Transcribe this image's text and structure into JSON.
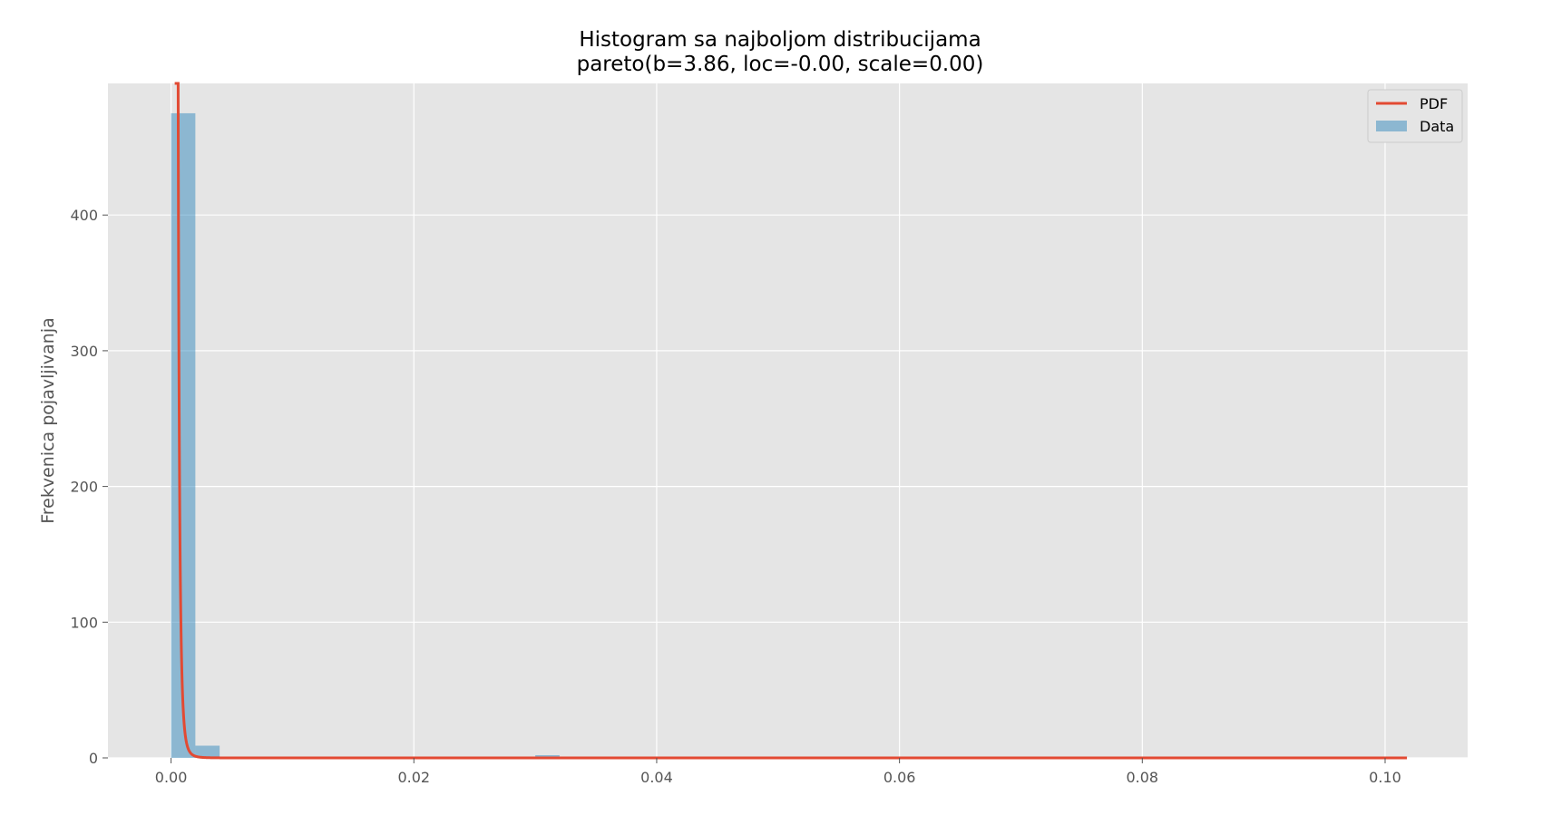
{
  "chart_data": {
    "type": "histogram",
    "title": "Histogram sa najboljom distribucijama",
    "subtitle": "pareto(b=3.86, loc=-0.00, scale=0.00)",
    "xlabel": "",
    "ylabel": "Frekvenica pojavljivanja",
    "xlim": [
      -0.0052,
      0.1068
    ],
    "ylim": [
      0,
      497
    ],
    "x_ticks": [
      0.0,
      0.02,
      0.04,
      0.06,
      0.08,
      0.1
    ],
    "x_tick_labels": [
      "0.00",
      "0.02",
      "0.04",
      "0.06",
      "0.08",
      "0.10"
    ],
    "y_ticks": [
      0,
      100,
      200,
      300,
      400
    ],
    "y_tick_labels": [
      "0",
      "100",
      "200",
      "300",
      "400"
    ],
    "grid": true,
    "legend_position": "top-right",
    "colors": {
      "plot_background": "#e5e5e5",
      "grid": "#ffffff",
      "hist": "#348abd",
      "pdf": "#e24a33",
      "tick_text": "#555555"
    },
    "series": [
      {
        "name": "Data",
        "kind": "bars",
        "bin_width": 0.002,
        "bins_start": [
          0.0,
          0.002,
          0.03
        ],
        "counts": [
          475,
          9,
          2
        ]
      },
      {
        "name": "PDF",
        "kind": "line",
        "pareto_b": 3.86,
        "x_start": 0.0003,
        "x_end": 0.1018
      }
    ]
  }
}
